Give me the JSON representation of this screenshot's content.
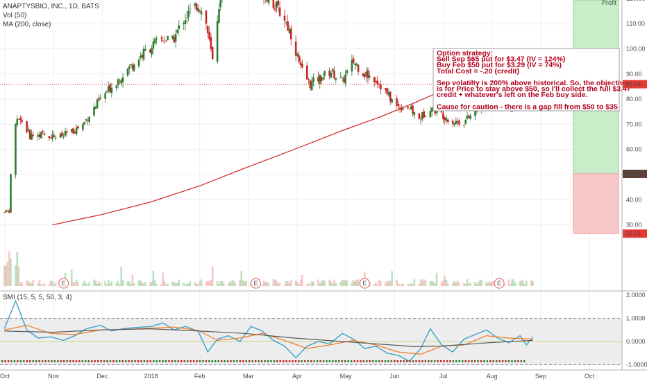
{
  "header": {
    "symbol_line": "ANAPTYSBIO, INC., 1D, BATS",
    "volume_line": "Vol (50)",
    "ma_line": "MA (200, close)",
    "smi_line": "SMI (15, 5, 5, 50, 3, 4)"
  },
  "colors": {
    "up": "#2e7d32",
    "down": "#c62828",
    "ma": "#d32f2f",
    "smi": "#3aa0c8",
    "smi_signal": "#f07820",
    "smi_long": "#5a5a5a",
    "profit_zone": "#c8edc8",
    "loss_zone": "#f8c8c8",
    "note_text": "#b3001b"
  },
  "note": {
    "lines": [
      "Option strategy:",
      "Sell Sep $65 put for $3.47   (IV = 124%)",
      "Buy Feb $50 put for $3.29   (IV =  74%)",
      "Total Cost =   -.20 (credit)",
      "",
      "Sep volatilty is 200% above historical.  So, the objective",
      "is for Price to stay above $50, so I'll collect the full $3.47",
      "credit + whatever's left on the Feb buy side.",
      "",
      "Cause for caution - there is a gap fill from $50 to $35"
    ]
  },
  "zone_top_label": "Profit",
  "price_tags": {
    "last": "85.94",
    "upper": "50.28",
    "lower": "26.51"
  },
  "earnings_marker": "E",
  "chart_data": [
    {
      "type": "candlestick",
      "title": "ANAPTYSBIO, INC., 1D, BATS",
      "x_tick_labels": [
        "Oct",
        "Nov",
        "Dec",
        "2018",
        "Feb",
        "Mar",
        "Apr",
        "May",
        "Jun",
        "Jul",
        "Aug",
        "Sep",
        "Oct"
      ],
      "y_tick_labels": [
        "30.00",
        "40.00",
        "50.00",
        "60.00",
        "70.00",
        "80.00",
        "90.00",
        "100.00",
        "110.00",
        "120.00",
        "130.00"
      ],
      "ylim": [
        26,
        140
      ],
      "price_line": 85.94,
      "zones": [
        {
          "name": "profit",
          "from": 50.28,
          "to": 140
        },
        {
          "name": "loss",
          "from": 26.51,
          "to": 50.28
        }
      ],
      "keypoints": [
        [
          "2017-10-02",
          35.0
        ],
        [
          "2017-10-05",
          35.5
        ],
        [
          "2017-10-06",
          50.0
        ],
        [
          "2017-10-09",
          70.0
        ],
        [
          "2017-10-12",
          72.0
        ],
        [
          "2017-10-18",
          65.5
        ],
        [
          "2017-10-25",
          66.0
        ],
        [
          "2017-11-06",
          65.0
        ],
        [
          "2017-11-13",
          67.0
        ],
        [
          "2017-11-20",
          70.0
        ],
        [
          "2017-12-01",
          80.0
        ],
        [
          "2017-12-15",
          90.0
        ],
        [
          "2017-12-29",
          99.0
        ],
        [
          "2018-01-08",
          104.0
        ],
        [
          "2018-01-15",
          103.0
        ],
        [
          "2018-01-22",
          112.0
        ],
        [
          "2018-01-31",
          118.0
        ],
        [
          "2018-02-05",
          110.0
        ],
        [
          "2018-02-09",
          95.0
        ],
        [
          "2018-02-13",
          118.0
        ],
        [
          "2018-02-20",
          132.0
        ],
        [
          "2018-02-28",
          128.0
        ],
        [
          "2018-03-06",
          134.0
        ],
        [
          "2018-03-12",
          124.0
        ],
        [
          "2018-03-19",
          118.0
        ],
        [
          "2018-03-26",
          112.0
        ],
        [
          "2018-03-31",
          104.0
        ],
        [
          "2018-04-05",
          92.0
        ],
        [
          "2018-04-11",
          86.0
        ],
        [
          "2018-04-16",
          88.0
        ],
        [
          "2018-04-24",
          91.0
        ],
        [
          "2018-05-01",
          87.0
        ],
        [
          "2018-05-08",
          95.0
        ],
        [
          "2018-05-15",
          90.0
        ],
        [
          "2018-05-22",
          88.0
        ],
        [
          "2018-05-29",
          82.0
        ],
        [
          "2018-06-04",
          77.0
        ],
        [
          "2018-06-11",
          77.0
        ],
        [
          "2018-06-18",
          72.0
        ],
        [
          "2018-06-25",
          77.0
        ],
        [
          "2018-07-02",
          74.0
        ],
        [
          "2018-07-09",
          71.0
        ],
        [
          "2018-07-16",
          71.0
        ],
        [
          "2018-07-23",
          75.0
        ],
        [
          "2018-07-30",
          81.0
        ],
        [
          "2018-08-06",
          79.0
        ],
        [
          "2018-08-13",
          76.0
        ],
        [
          "2018-08-20",
          82.0
        ],
        [
          "2018-08-24",
          84.0
        ],
        [
          "2018-08-28",
          85.94
        ]
      ],
      "ma200": [
        [
          "2017-11-01",
          30.0
        ],
        [
          "2017-12-01",
          34.0
        ],
        [
          "2018-01-01",
          39.0
        ],
        [
          "2018-02-01",
          45.5
        ],
        [
          "2018-03-01",
          52.5
        ],
        [
          "2018-04-01",
          60.0
        ],
        [
          "2018-05-01",
          67.5
        ],
        [
          "2018-05-25",
          73.0
        ],
        [
          "2018-06-15",
          78.5
        ],
        [
          "2018-07-01",
          83.0
        ],
        [
          "2018-07-20",
          86.5
        ],
        [
          "2018-08-15",
          88.5
        ],
        [
          "2018-08-28",
          89.5
        ]
      ],
      "earnings_dates": [
        "2017-11-08",
        "2018-03-08",
        "2018-05-15",
        "2018-08-07"
      ]
    },
    {
      "type": "line",
      "title": "SMI (15, 5, 5, 50, 3, 4)",
      "y_tick_labels": [
        "2.0000",
        "1.0000",
        "0.0000",
        "-1.0000"
      ],
      "ylim": [
        -1.05,
        2.0
      ],
      "overbought": 1.0,
      "oversold": -1.0,
      "series": [
        {
          "key": "smi",
          "points": [
            [
              "2017-10-02",
              0.55
            ],
            [
              "2017-10-09",
              1.75
            ],
            [
              "2017-10-16",
              0.5
            ],
            [
              "2017-10-23",
              0.15
            ],
            [
              "2017-10-31",
              0.2
            ],
            [
              "2017-11-08",
              0.05
            ],
            [
              "2017-11-15",
              0.25
            ],
            [
              "2017-11-22",
              0.55
            ],
            [
              "2017-12-01",
              0.7
            ],
            [
              "2017-12-08",
              0.45
            ],
            [
              "2017-12-15",
              0.55
            ],
            [
              "2017-12-22",
              0.6
            ],
            [
              "2018-01-02",
              0.65
            ],
            [
              "2018-01-09",
              0.8
            ],
            [
              "2018-01-16",
              0.5
            ],
            [
              "2018-01-23",
              0.65
            ],
            [
              "2018-01-31",
              0.45
            ],
            [
              "2018-02-06",
              -0.45
            ],
            [
              "2018-02-12",
              0.1
            ],
            [
              "2018-02-19",
              0.25
            ],
            [
              "2018-02-26",
              0.0
            ],
            [
              "2018-03-05",
              0.65
            ],
            [
              "2018-03-12",
              0.45
            ],
            [
              "2018-03-19",
              0.05
            ],
            [
              "2018-03-26",
              -0.2
            ],
            [
              "2018-04-02",
              -0.7
            ],
            [
              "2018-04-09",
              -0.2
            ],
            [
              "2018-04-16",
              0.0
            ],
            [
              "2018-04-23",
              -0.1
            ],
            [
              "2018-05-01",
              0.35
            ],
            [
              "2018-05-08",
              0.1
            ],
            [
              "2018-05-15",
              -0.3
            ],
            [
              "2018-05-22",
              -0.2
            ],
            [
              "2018-05-29",
              -0.5
            ],
            [
              "2018-06-05",
              -0.6
            ],
            [
              "2018-06-12",
              -0.85
            ],
            [
              "2018-06-19",
              -0.3
            ],
            [
              "2018-06-25",
              0.55
            ],
            [
              "2018-07-02",
              -0.15
            ],
            [
              "2018-07-09",
              -0.45
            ],
            [
              "2018-07-16",
              0.1
            ],
            [
              "2018-07-23",
              0.3
            ],
            [
              "2018-07-30",
              0.5
            ],
            [
              "2018-08-06",
              0.15
            ],
            [
              "2018-08-13",
              -0.05
            ],
            [
              "2018-08-20",
              0.25
            ],
            [
              "2018-08-24",
              -0.15
            ],
            [
              "2018-08-28",
              0.2
            ]
          ]
        },
        {
          "key": "smi_signal",
          "points": [
            [
              "2017-10-02",
              0.5
            ],
            [
              "2017-10-16",
              0.7
            ],
            [
              "2017-10-31",
              0.35
            ],
            [
              "2017-11-15",
              0.3
            ],
            [
              "2017-12-01",
              0.5
            ],
            [
              "2017-12-15",
              0.52
            ],
            [
              "2018-01-02",
              0.58
            ],
            [
              "2018-01-16",
              0.62
            ],
            [
              "2018-01-31",
              0.48
            ],
            [
              "2018-02-12",
              0.05
            ],
            [
              "2018-02-26",
              0.15
            ],
            [
              "2018-03-12",
              0.35
            ],
            [
              "2018-03-26",
              0.05
            ],
            [
              "2018-04-09",
              -0.3
            ],
            [
              "2018-04-23",
              -0.15
            ],
            [
              "2018-05-08",
              0.05
            ],
            [
              "2018-05-22",
              -0.15
            ],
            [
              "2018-06-05",
              -0.45
            ],
            [
              "2018-06-19",
              -0.55
            ],
            [
              "2018-07-02",
              -0.2
            ],
            [
              "2018-07-16",
              -0.15
            ],
            [
              "2018-07-30",
              0.25
            ],
            [
              "2018-08-13",
              0.15
            ],
            [
              "2018-08-28",
              0.1
            ]
          ]
        },
        {
          "key": "smi_long",
          "points": [
            [
              "2017-10-02",
              0.45
            ],
            [
              "2017-11-01",
              0.4
            ],
            [
              "2017-12-01",
              0.5
            ],
            [
              "2018-01-01",
              0.55
            ],
            [
              "2018-02-01",
              0.45
            ],
            [
              "2018-03-01",
              0.35
            ],
            [
              "2018-04-01",
              0.15
            ],
            [
              "2018-05-01",
              0.0
            ],
            [
              "2018-06-01",
              -0.15
            ],
            [
              "2018-06-15",
              -0.22
            ],
            [
              "2018-07-01",
              -0.2
            ],
            [
              "2018-08-01",
              -0.05
            ],
            [
              "2018-08-28",
              0.05
            ]
          ]
        }
      ]
    }
  ]
}
